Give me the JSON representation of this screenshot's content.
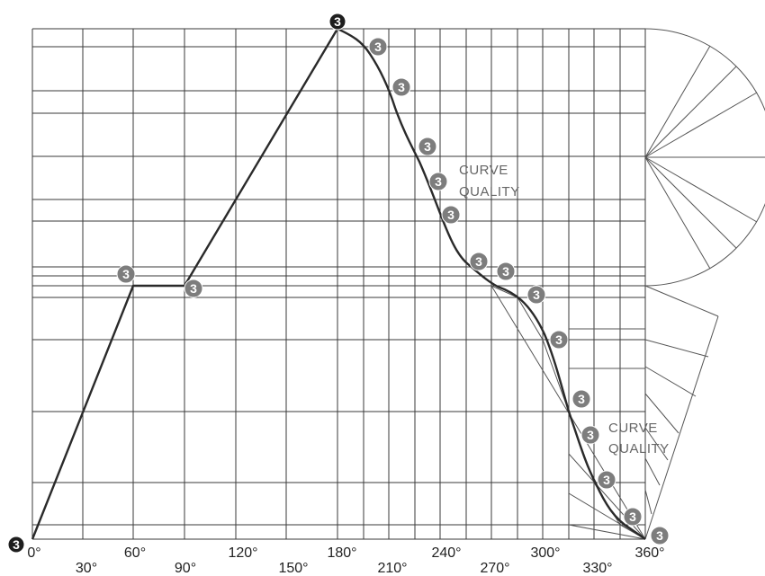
{
  "angle_labels": [
    "0°",
    "30°",
    "60°",
    "90°",
    "120°",
    "150°",
    "180°",
    "210°",
    "240°",
    "270°",
    "300°",
    "330°",
    "360°"
  ],
  "badge_number": "3",
  "annotations": {
    "curve_quality_upper": [
      "CURVE",
      "QUALITY"
    ],
    "curve_quality_lower": [
      "CURVE",
      "QUALITY"
    ]
  },
  "colors": {
    "line": "#2a2a2a",
    "grid": "#3a3a3a",
    "badge_grey": "#7d7d7d",
    "badge_dark": "#1e1e1e",
    "annotation_text": "#666666"
  }
}
